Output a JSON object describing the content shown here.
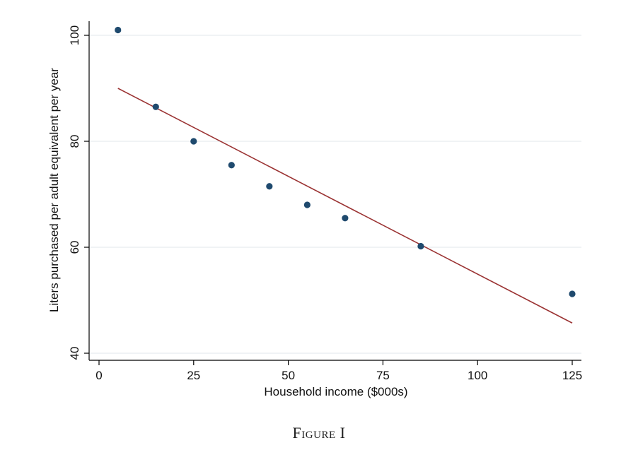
{
  "caption": "Figure I",
  "chart_data": {
    "type": "scatter",
    "title": "",
    "xlabel": "Household income ($000s)",
    "ylabel": "Liters purchased per adult equivalent per year",
    "xlim": [
      0,
      125
    ],
    "ylim": [
      40,
      100
    ],
    "x_ticks": [
      0,
      25,
      50,
      75,
      100,
      125
    ],
    "y_ticks": [
      40,
      60,
      80,
      100
    ],
    "grid": "horizontal",
    "series": [
      {
        "type": "scatter",
        "color": "#1f4a6e",
        "points": [
          {
            "x": 5,
            "y": 101
          },
          {
            "x": 15,
            "y": 86.5
          },
          {
            "x": 25,
            "y": 80
          },
          {
            "x": 35,
            "y": 75.5
          },
          {
            "x": 45,
            "y": 71.5
          },
          {
            "x": 55,
            "y": 68
          },
          {
            "x": 65,
            "y": 65.5
          },
          {
            "x": 85,
            "y": 60.2
          },
          {
            "x": 125,
            "y": 51.2
          }
        ]
      },
      {
        "type": "line",
        "color": "#9b3333",
        "points": [
          {
            "x": 5,
            "y": 90
          },
          {
            "x": 125,
            "y": 45.7
          }
        ]
      }
    ]
  }
}
